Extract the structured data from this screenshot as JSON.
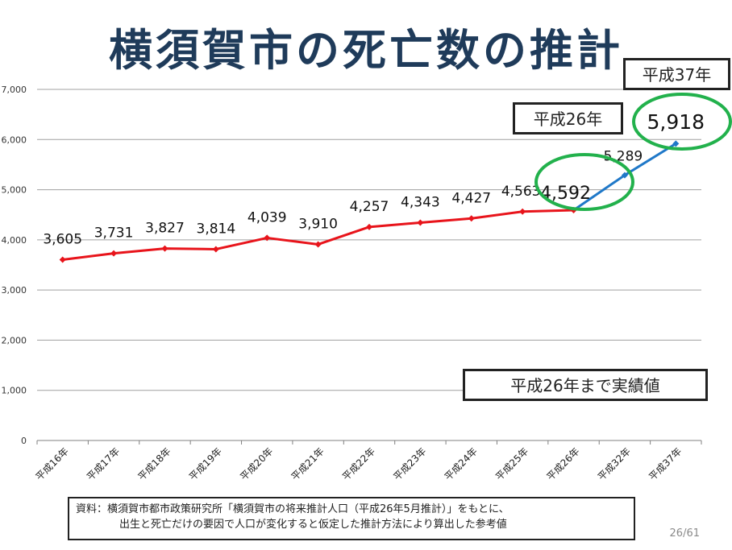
{
  "slide": {
    "title": "横須賀市の死亡数の推計",
    "page_number": "26/61"
  },
  "callouts": {
    "h37_label": "平成37年",
    "h26_label": "平成26年",
    "actual_note": "平成26年まで実績値"
  },
  "source": {
    "line1": "資料：横須賀市都市政策研究所「横須賀市の将来推計人口（平成26年5月推計）」をもとに、",
    "line2": "出生と死亡だけの要因で人口が変化すると仮定した推計方法により算出した参考値"
  },
  "colors": {
    "actual_series": "#e8141b",
    "projection_series": "#1f78c8",
    "highlight_circle": "#22b14c",
    "title": "#1f3b5a",
    "grid": "#a0a0a0"
  },
  "chart_data": {
    "type": "line",
    "categories": [
      "平成16年",
      "平成17年",
      "平成18年",
      "平成19年",
      "平成20年",
      "平成21年",
      "平成22年",
      "平成23年",
      "平成24年",
      "平成25年",
      "平成26年",
      "平成32年",
      "平成37年"
    ],
    "series": [
      {
        "values": [
          3605,
          3731,
          3827,
          3814,
          4039,
          3910,
          4257,
          4343,
          4427,
          4563,
          4592,
          null,
          null
        ],
        "labels": [
          "3,605",
          "3,731",
          "3,827",
          "3,814",
          "4,039",
          "3,910",
          "4,257",
          "4,343",
          "4,427",
          "4,563",
          "4,592",
          "",
          ""
        ]
      },
      {
        "values": [
          null,
          null,
          null,
          null,
          null,
          null,
          null,
          null,
          null,
          null,
          4592,
          5289,
          5918
        ],
        "labels": [
          "",
          "",
          "",
          "",
          "",
          "",
          "",
          "",
          "",
          "",
          "",
          "5,289",
          "5,918"
        ]
      }
    ],
    "yticks": [
      0,
      1000,
      2000,
      3000,
      4000,
      5000,
      6000,
      7000
    ],
    "ytick_labels": [
      "0",
      "1,000",
      "2,000",
      "3,000",
      "4,000",
      "5,000",
      "6,000",
      "7,000"
    ],
    "ylim": [
      0,
      7000
    ],
    "grid": true,
    "legend": false
  }
}
